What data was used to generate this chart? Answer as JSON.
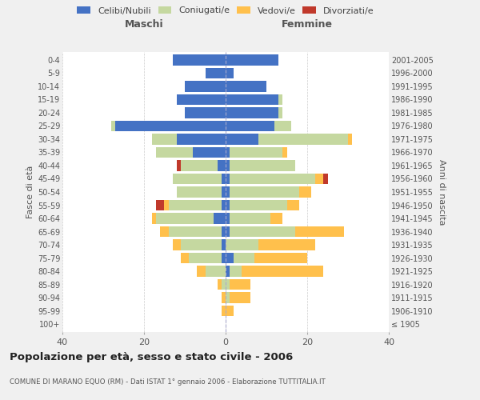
{
  "age_groups": [
    "100+",
    "95-99",
    "90-94",
    "85-89",
    "80-84",
    "75-79",
    "70-74",
    "65-69",
    "60-64",
    "55-59",
    "50-54",
    "45-49",
    "40-44",
    "35-39",
    "30-34",
    "25-29",
    "20-24",
    "15-19",
    "10-14",
    "5-9",
    "0-4"
  ],
  "birth_years": [
    "≤ 1905",
    "1906-1910",
    "1911-1915",
    "1916-1920",
    "1921-1925",
    "1926-1930",
    "1931-1935",
    "1936-1940",
    "1941-1945",
    "1946-1950",
    "1951-1955",
    "1956-1960",
    "1961-1965",
    "1966-1970",
    "1971-1975",
    "1976-1980",
    "1981-1985",
    "1986-1990",
    "1991-1995",
    "1996-2000",
    "2001-2005"
  ],
  "colors": {
    "celibe": "#4472c4",
    "coniugato": "#c5d8a0",
    "vedovo": "#ffc04c",
    "divorziato": "#c0392b"
  },
  "males": {
    "celibe": [
      0,
      0,
      0,
      0,
      0,
      1,
      1,
      1,
      3,
      1,
      1,
      1,
      2,
      8,
      12,
      27,
      10,
      12,
      10,
      5,
      13
    ],
    "coniugato": [
      0,
      0,
      0,
      1,
      5,
      8,
      10,
      13,
      14,
      13,
      11,
      12,
      9,
      9,
      6,
      1,
      0,
      0,
      0,
      0,
      0
    ],
    "vedovo": [
      0,
      1,
      1,
      1,
      2,
      2,
      2,
      2,
      1,
      1,
      0,
      0,
      0,
      0,
      0,
      0,
      0,
      0,
      0,
      0,
      0
    ],
    "divorziato": [
      0,
      0,
      0,
      0,
      0,
      0,
      0,
      0,
      0,
      2,
      0,
      0,
      1,
      0,
      0,
      0,
      0,
      0,
      0,
      0,
      0
    ]
  },
  "females": {
    "celibe": [
      0,
      0,
      0,
      0,
      1,
      2,
      0,
      1,
      1,
      1,
      1,
      1,
      1,
      1,
      8,
      12,
      13,
      13,
      10,
      2,
      13
    ],
    "coniugato": [
      0,
      0,
      1,
      1,
      3,
      5,
      8,
      16,
      10,
      14,
      17,
      21,
      16,
      13,
      22,
      4,
      1,
      1,
      0,
      0,
      0
    ],
    "vedovo": [
      0,
      2,
      5,
      5,
      20,
      13,
      14,
      12,
      3,
      3,
      3,
      2,
      0,
      1,
      1,
      0,
      0,
      0,
      0,
      0,
      0
    ],
    "divorziato": [
      0,
      0,
      0,
      0,
      0,
      0,
      0,
      0,
      0,
      0,
      0,
      1,
      0,
      0,
      0,
      0,
      0,
      0,
      0,
      0,
      0
    ]
  },
  "xlim": 40,
  "title": "Popolazione per età, sesso e stato civile - 2006",
  "subtitle": "COMUNE DI MARANO EQUO (RM) - Dati ISTAT 1° gennaio 2006 - Elaborazione TUTTITALIA.IT",
  "xlabel_left": "Maschi",
  "xlabel_right": "Femmine",
  "ylabel_left": "Fasce di età",
  "ylabel_right": "Anni di nascita",
  "legend_labels": [
    "Celibi/Nubili",
    "Coniugati/e",
    "Vedovi/e",
    "Divorziati/e"
  ],
  "background_color": "#f0f0f0",
  "plot_background": "#ffffff"
}
